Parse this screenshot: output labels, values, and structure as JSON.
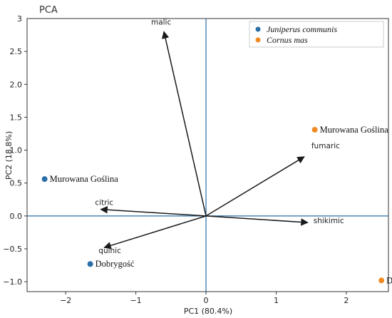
{
  "chart_data": {
    "type": "scatter",
    "title": "PCA",
    "xlabel": "PC1 (80.4%)",
    "ylabel": "PC2 (18.8%)",
    "xlim": [
      -2.55,
      2.6
    ],
    "ylim": [
      -1.15,
      3.0
    ],
    "x_ticks": [
      -2,
      -1,
      0,
      1,
      2
    ],
    "y_ticks": [
      -1.0,
      -0.5,
      0.0,
      0.5,
      1.0,
      1.5,
      2.0,
      2.5
    ],
    "x_tick_labels": [
      "−2",
      "−1",
      "0",
      "1",
      "2"
    ],
    "y_tick_labels": [
      "−1.0",
      "−0.5",
      "0.0",
      "0.5",
      "1.0",
      "1.5",
      "2.0",
      "2.5"
    ],
    "top_tick_label": "3",
    "grid": false,
    "legend_position": "top-right",
    "series": [
      {
        "name": "Juniperus communis",
        "color": "#2a6ea6",
        "points": [
          {
            "x": -2.3,
            "y": 0.56,
            "label": "Murowana Goślina"
          },
          {
            "x": -1.65,
            "y": -0.73,
            "label": "Dobrygość"
          }
        ]
      },
      {
        "name": "Cornus mas",
        "color": "#f08a24",
        "points": [
          {
            "x": 1.55,
            "y": 1.31,
            "label": "Murowana Goślina"
          },
          {
            "x": 2.5,
            "y": -0.98,
            "label": "Dobrygość"
          }
        ]
      }
    ],
    "loadings": [
      {
        "name": "malic",
        "x": -0.6,
        "y": 2.8
      },
      {
        "name": "fumaric",
        "x": 1.4,
        "y": 0.9
      },
      {
        "name": "citric",
        "x": -1.5,
        "y": 0.1
      },
      {
        "name": "shikimic",
        "x": 1.45,
        "y": -0.1
      },
      {
        "name": "quinic",
        "x": -1.45,
        "y": -0.48
      }
    ]
  }
}
